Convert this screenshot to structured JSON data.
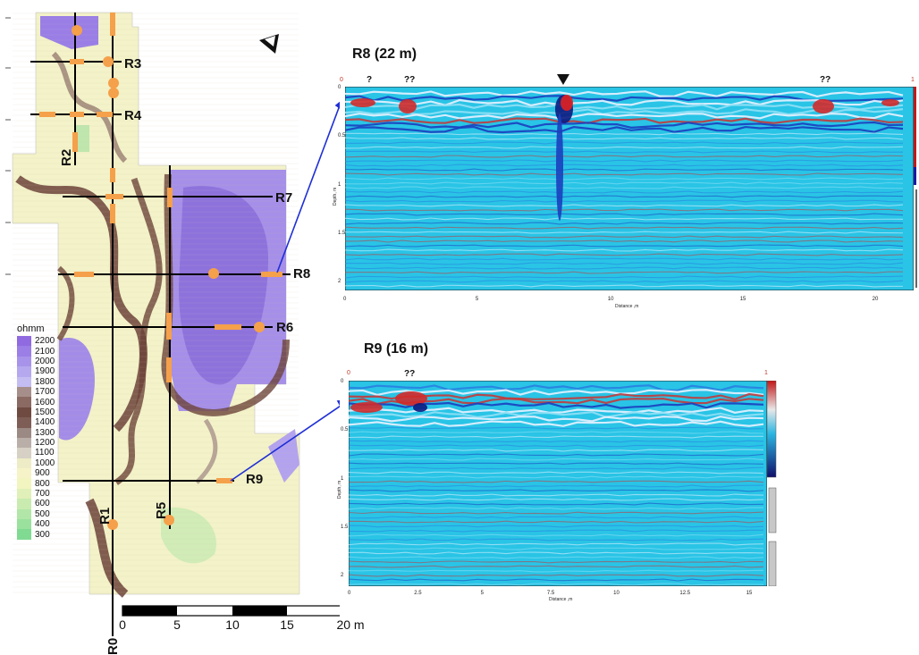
{
  "map": {
    "legend": {
      "unit": "ohmm",
      "entries": [
        {
          "value": "2200",
          "color": "#8f6ae0"
        },
        {
          "value": "2100",
          "color": "#9b7ee6"
        },
        {
          "value": "2000",
          "color": "#a893ea"
        },
        {
          "value": "1900",
          "color": "#b5a8ee"
        },
        {
          "value": "1800",
          "color": "#c4bdf2"
        },
        {
          "value": "1700",
          "color": "#a68f8a"
        },
        {
          "value": "1600",
          "color": "#8a6a62"
        },
        {
          "value": "1500",
          "color": "#6f4a40"
        },
        {
          "value": "1400",
          "color": "#7d5d55"
        },
        {
          "value": "1300",
          "color": "#9b8983"
        },
        {
          "value": "1200",
          "color": "#b9aea8"
        },
        {
          "value": "1100",
          "color": "#d6d1c4"
        },
        {
          "value": "1000",
          "color": "#eeecc6"
        },
        {
          "value": "900",
          "color": "#f5f3c7"
        },
        {
          "value": "800",
          "color": "#f2f5bf"
        },
        {
          "value": "700",
          "color": "#e0f0b8"
        },
        {
          "value": "600",
          "color": "#c9ebb0"
        },
        {
          "value": "500",
          "color": "#b2e6a8"
        },
        {
          "value": "400",
          "color": "#9ae19e"
        },
        {
          "value": "300",
          "color": "#80da92"
        }
      ]
    },
    "profile_labels": {
      "r0": "R0",
      "r1": "R1",
      "r2": "R2",
      "r3": "R3",
      "r4": "R4",
      "r5": "R5",
      "r6": "R6",
      "r7": "R7",
      "r8": "R8",
      "r9": "R9"
    },
    "scale": {
      "labels": [
        "0",
        "5",
        "10",
        "15",
        "20 m"
      ]
    }
  },
  "radargrams": [
    {
      "title": "R8 (22 m)",
      "markers": [
        "?",
        "??",
        "??"
      ],
      "x_ticks": [
        "0",
        "5",
        "10",
        "15",
        "20"
      ],
      "y_ticks": [
        "0",
        "0.5",
        "1",
        "1.5",
        "2"
      ],
      "x_title": "Distance ,m",
      "y_title": "Depth, m",
      "corner_left": "0",
      "corner_right": "1"
    },
    {
      "title": "R9 (16 m)",
      "markers": [
        "??"
      ],
      "x_ticks": [
        "0",
        "2.5",
        "5",
        "7.5",
        "10",
        "12.5",
        "15"
      ],
      "y_ticks": [
        "0",
        "0.5",
        "1",
        "1.5",
        "2"
      ],
      "x_title": "Distance ,m",
      "y_title": "Depth, m",
      "corner_left": "0",
      "corner_right": "1"
    }
  ],
  "colors": {
    "profile_line": "#000000",
    "anomaly": "#f5a04a",
    "connector": "#1f2fd6",
    "radar_bg": "#29c4e6"
  }
}
